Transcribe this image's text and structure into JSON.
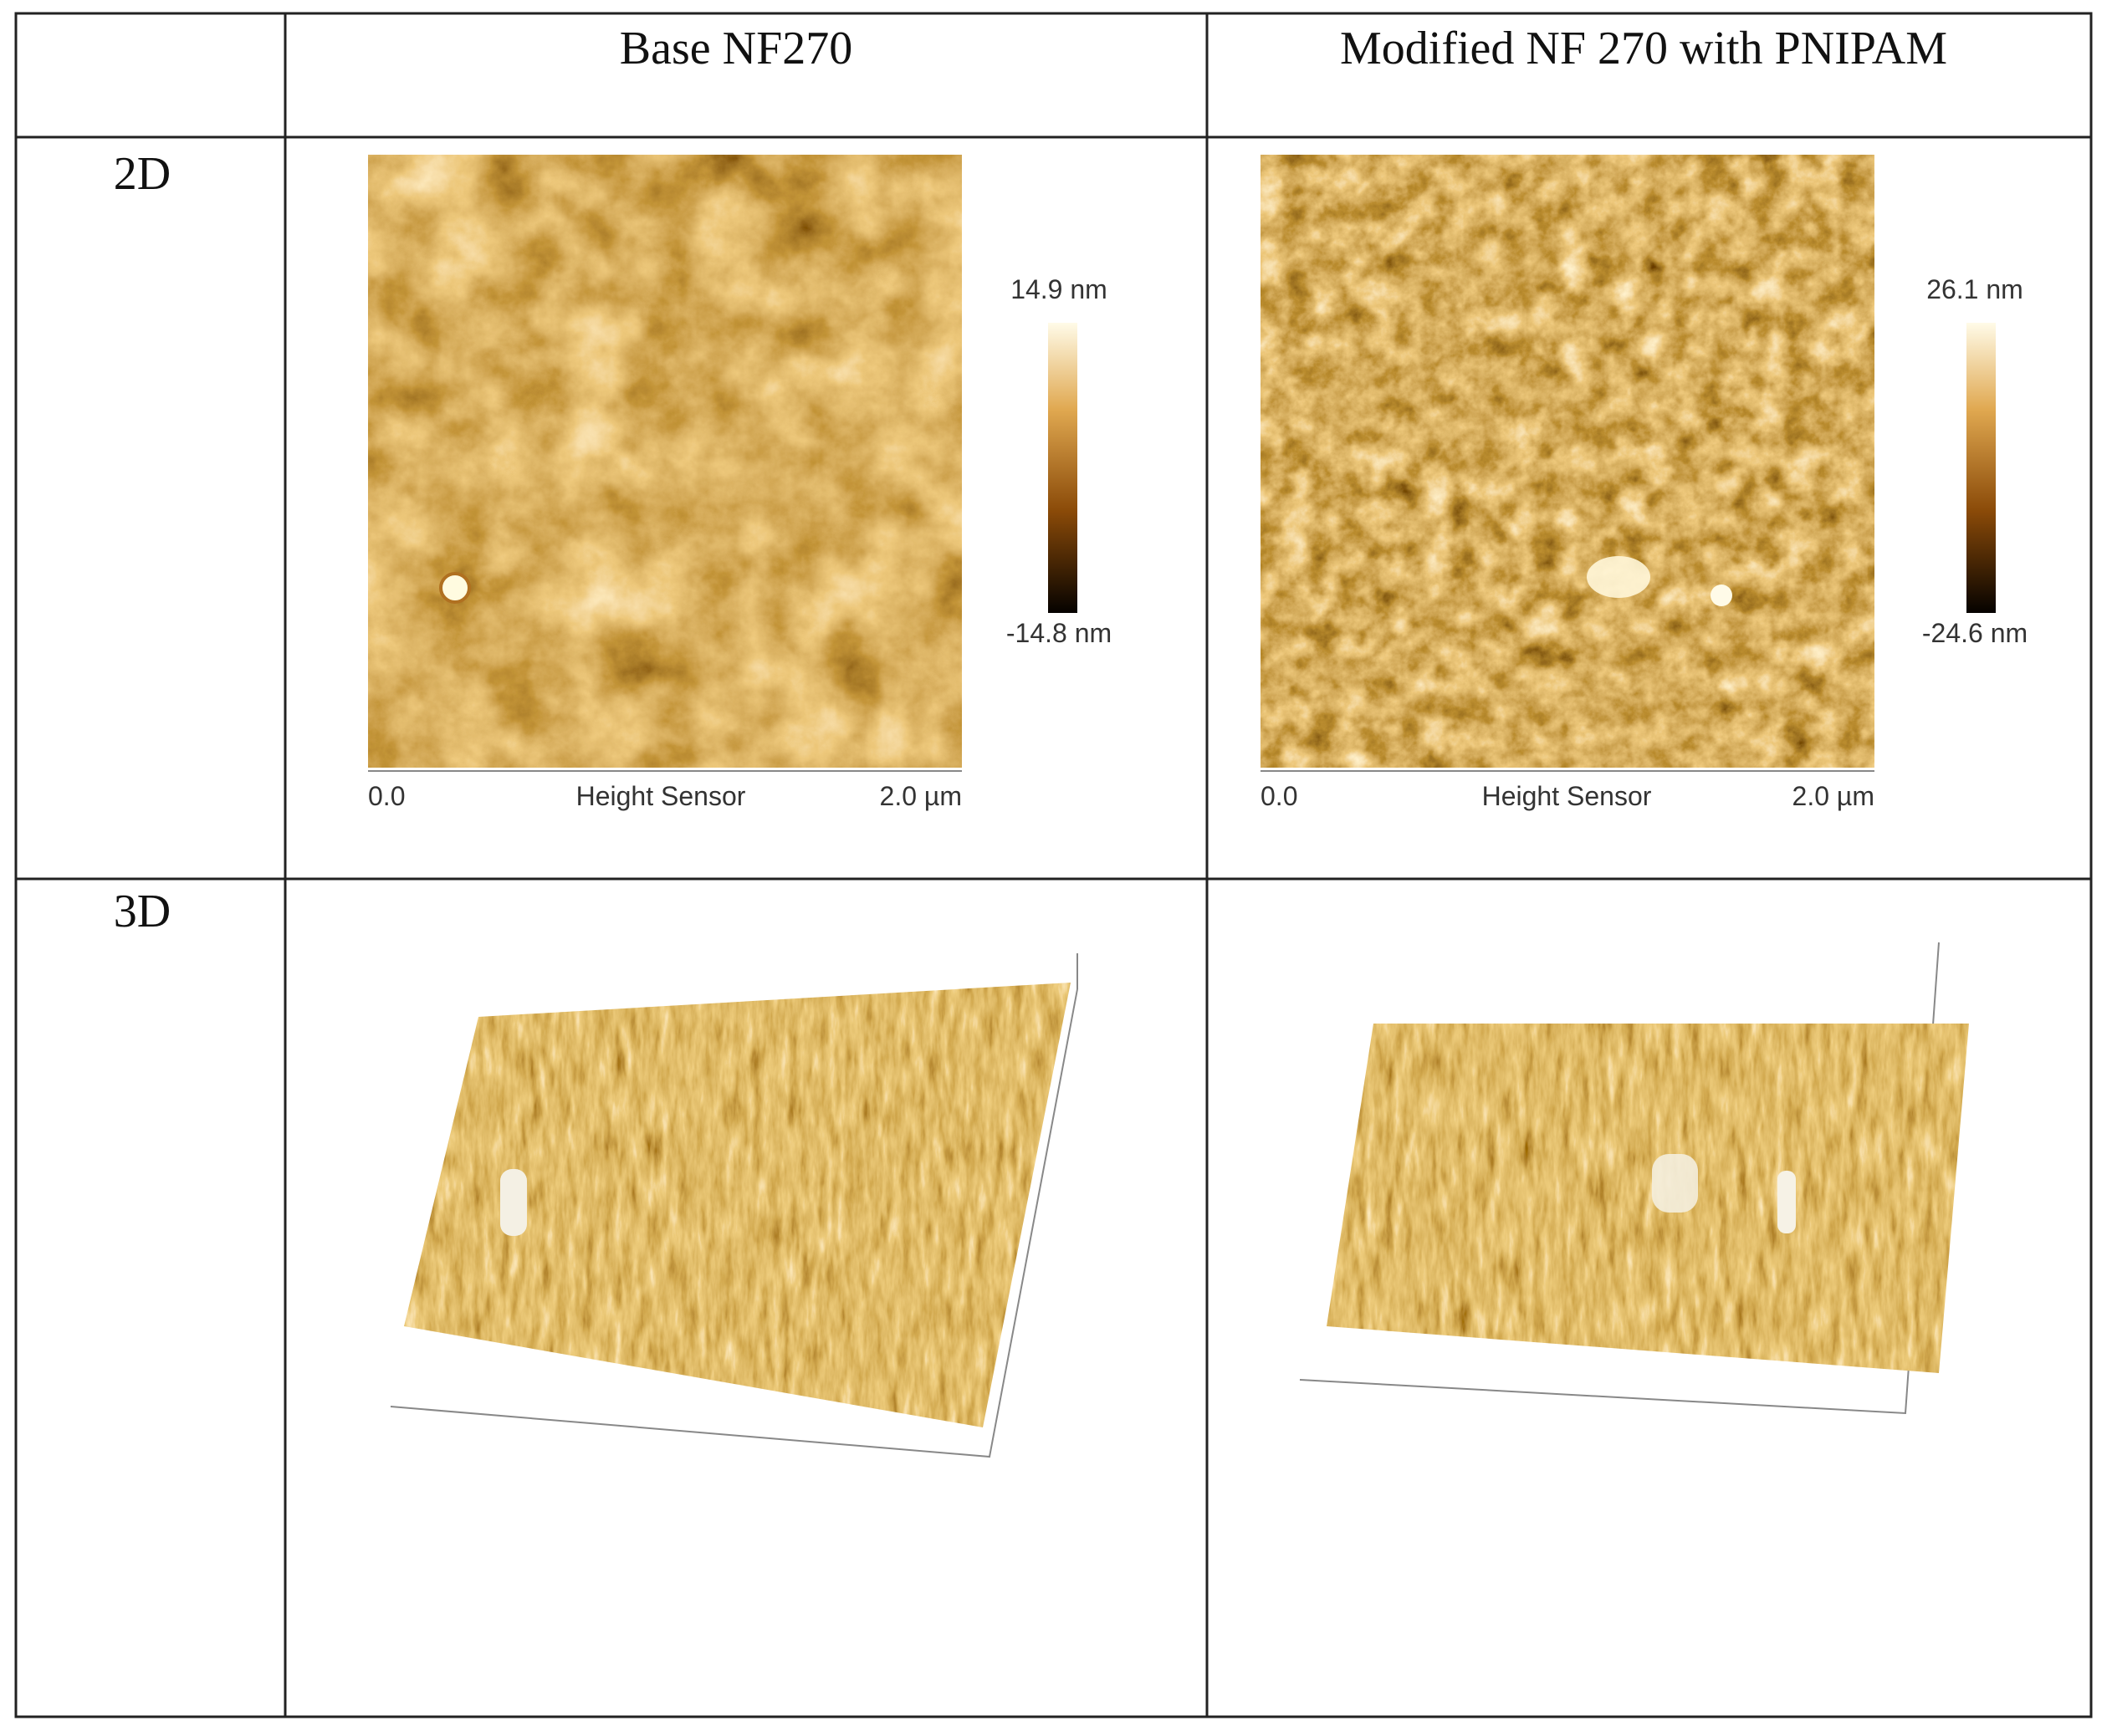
{
  "header": {
    "columns": [
      "Base NF270",
      "Modified NF 270 with PNIPAM"
    ]
  },
  "rows": [
    {
      "label": "2D",
      "panels": [
        {
          "colorbar_max": "14.9 nm",
          "colorbar_min": "-14.8 nm",
          "x_start": "0.0",
          "x_label": "Height Sensor",
          "x_end": "2.0 µm"
        },
        {
          "colorbar_max": "26.1 nm",
          "colorbar_min": "-24.6 nm",
          "x_start": "0.0",
          "x_label": "Height Sensor",
          "x_end": "2.0 µm"
        }
      ]
    },
    {
      "label": "3D"
    }
  ]
}
